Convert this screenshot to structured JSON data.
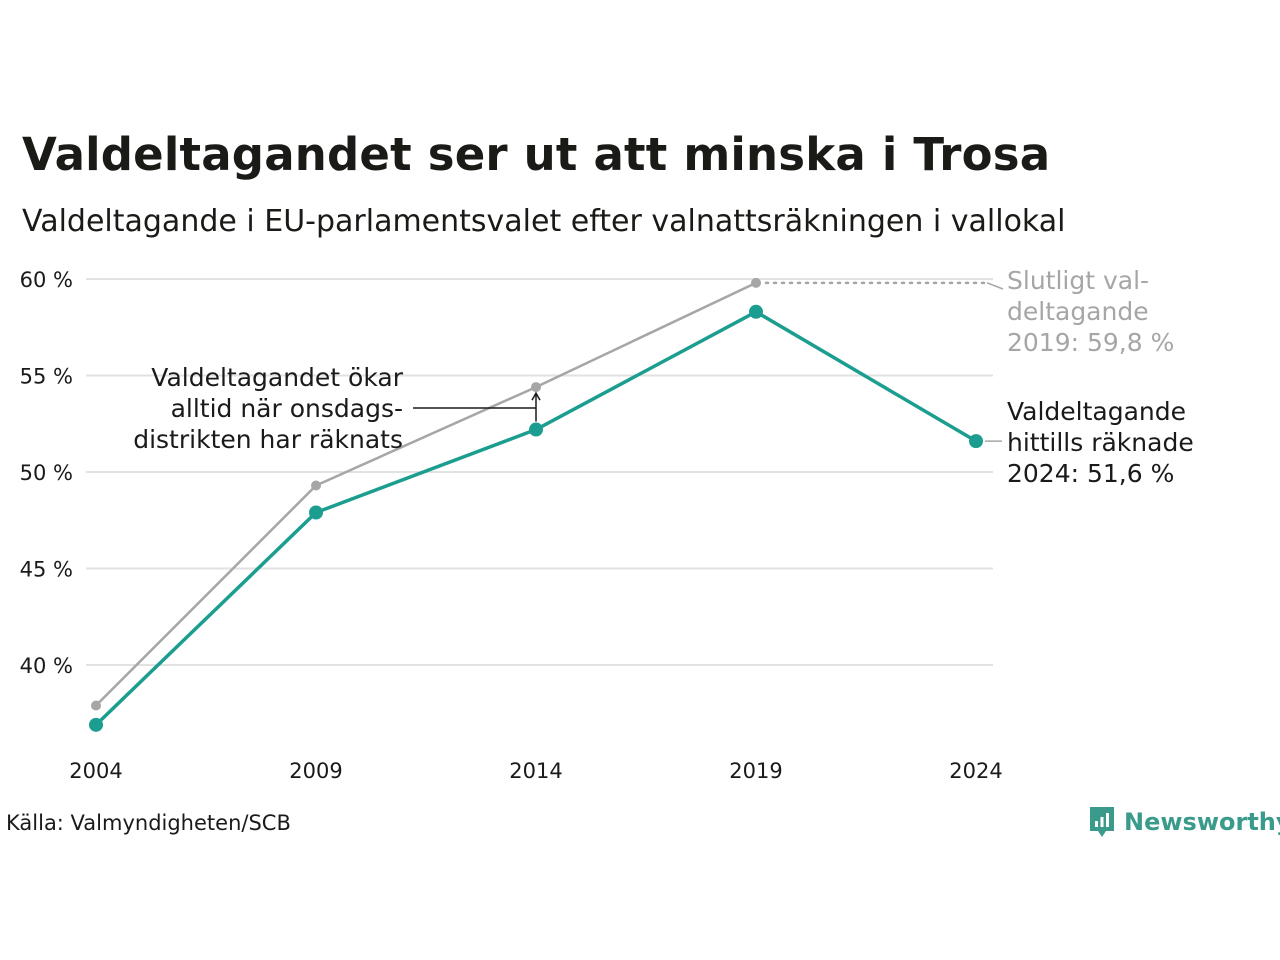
{
  "title": "Valdeltagandet ser ut att minska i Trosa",
  "subtitle": "Valdeltagande i EU-parlamentsvalet efter valnattsräkningen i vallokal",
  "source": "Källa: Valmyndigheten/SCB",
  "brand": {
    "name": "Newsworthy",
    "icon": "newsworthy-logo-icon",
    "color": "#3a9b8c"
  },
  "chart_data": {
    "type": "line",
    "x": [
      2004,
      2009,
      2014,
      2019,
      2024
    ],
    "ylim": [
      36,
      60
    ],
    "y_ticks": [
      40,
      45,
      50,
      55,
      60
    ],
    "y_tick_labels": [
      "40 %",
      "45 %",
      "50 %",
      "55 %",
      "60 %"
    ],
    "x_tick_labels": [
      "2004",
      "2009",
      "2014",
      "2019",
      "2024"
    ],
    "grid": true,
    "series": [
      {
        "key": "final",
        "values": [
          37.9,
          49.3,
          54.4,
          59.8,
          null
        ],
        "color": "#a6a6a6"
      },
      {
        "key": "counted",
        "values": [
          36.9,
          47.9,
          52.2,
          58.3,
          51.6
        ],
        "color": "#1b9e8f"
      }
    ],
    "annotations": {
      "final_label": [
        "Slutligt val-",
        "deltagande",
        "2019: 59,8 %"
      ],
      "counted_label": [
        "Valdeltagande",
        "hittills räknade",
        "2024: 51,6 %"
      ],
      "note": [
        "Valdeltagandet ökar",
        "alltid när onsdags-",
        "distrikten har räknats"
      ]
    }
  }
}
